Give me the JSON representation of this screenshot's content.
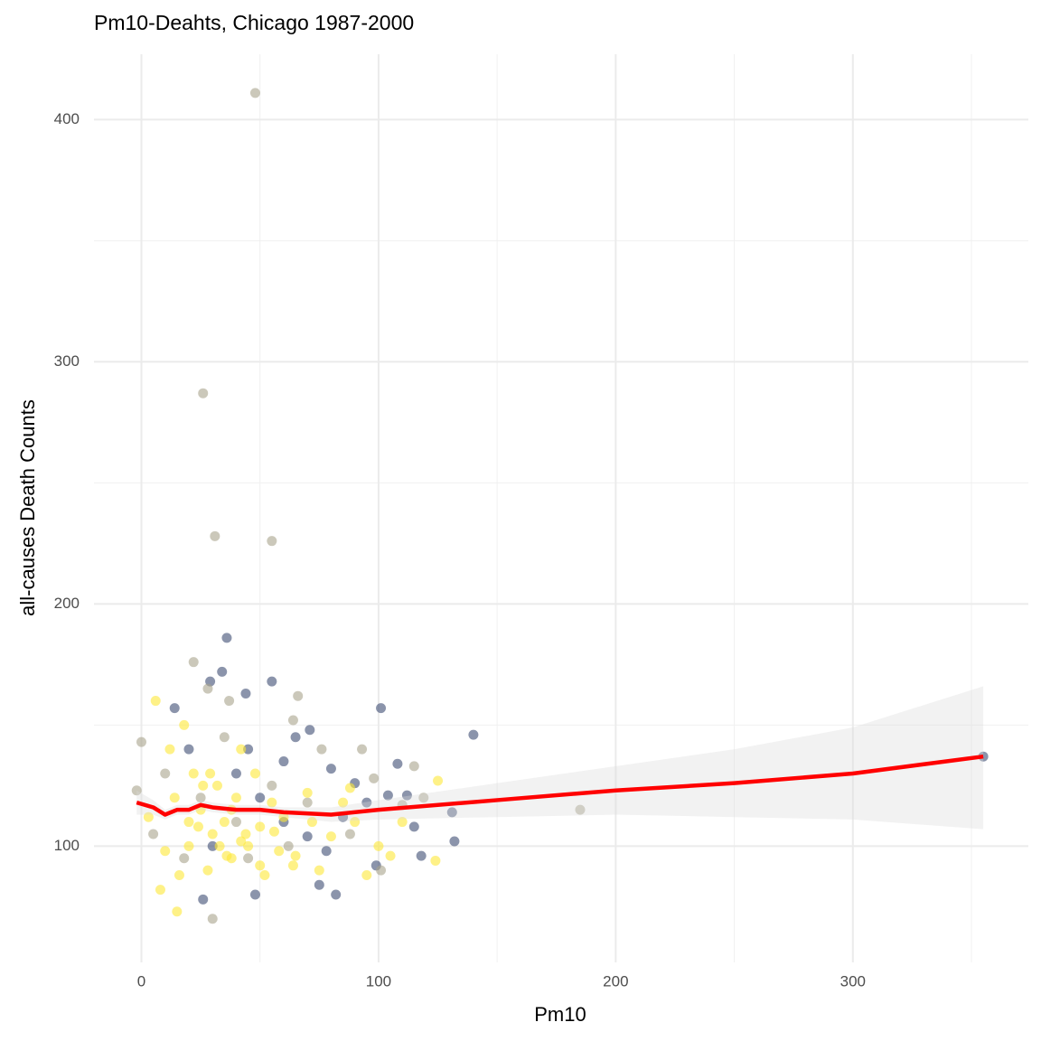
{
  "chart_data": {
    "type": "scatter",
    "title": "Pm10-Deahts, Chicago 1987-2000",
    "x_label": "Pm10",
    "y_label": "all-causes Death Counts",
    "xlim": [
      -20,
      374
    ],
    "ylim": [
      52,
      427
    ],
    "xticks": [
      0,
      100,
      200,
      300
    ],
    "yticks": [
      100,
      200,
      300,
      400
    ],
    "x_minor_ticks": [
      50,
      150,
      250,
      350
    ],
    "y_minor_ticks": [
      150,
      250,
      350
    ],
    "grid": true,
    "point_opacity": 0.6,
    "series": [
      {
        "color": "#3d4d73",
        "x": [
          36,
          55,
          29,
          34,
          44,
          101,
          140,
          71,
          65,
          80,
          90,
          108,
          112,
          131,
          355,
          132,
          115,
          99,
          118,
          82,
          75,
          48,
          26,
          14,
          20,
          40,
          50,
          60,
          70,
          85,
          95,
          45,
          30,
          60,
          104,
          78
        ],
        "values": [
          186,
          168,
          168,
          172,
          163,
          157,
          146,
          148,
          145,
          132,
          126,
          134,
          121,
          114,
          137,
          102,
          108,
          92,
          96,
          80,
          84,
          80,
          78,
          157,
          140,
          130,
          120,
          110,
          104,
          112,
          118,
          140,
          100,
          135,
          121,
          98
        ]
      },
      {
        "color": "#a8a38c",
        "x": [
          48,
          26,
          31,
          55,
          22,
          28,
          66,
          37,
          64,
          110,
          115,
          185,
          119,
          93,
          76,
          30,
          -2,
          0,
          10,
          18,
          40,
          55,
          35,
          70,
          88,
          98,
          25,
          45,
          5,
          62,
          101
        ],
        "values": [
          411,
          287,
          228,
          226,
          176,
          165,
          162,
          160,
          152,
          117,
          133,
          115,
          120,
          140,
          140,
          70,
          123,
          143,
          130,
          95,
          110,
          125,
          145,
          118,
          105,
          128,
          120,
          95,
          105,
          100,
          90
        ]
      },
      {
        "color": "#fde737",
        "x": [
          6,
          8,
          12,
          15,
          18,
          20,
          22,
          25,
          28,
          30,
          32,
          35,
          38,
          40,
          42,
          45,
          48,
          50,
          52,
          55,
          58,
          60,
          65,
          70,
          75,
          80,
          85,
          90,
          95,
          100,
          105,
          110,
          125,
          124,
          14,
          10,
          20,
          26,
          33,
          38,
          44,
          50,
          3,
          16,
          24,
          29,
          36,
          42,
          56,
          64,
          72,
          88
        ],
        "values": [
          160,
          82,
          140,
          73,
          150,
          100,
          130,
          115,
          90,
          105,
          125,
          110,
          95,
          120,
          140,
          100,
          130,
          108,
          88,
          118,
          98,
          112,
          96,
          122,
          90,
          104,
          118,
          110,
          88,
          100,
          96,
          110,
          127,
          94,
          120,
          98,
          110,
          125,
          100,
          115,
          105,
          92,
          112,
          88,
          108,
          130,
          96,
          102,
          106,
          92,
          110,
          124
        ]
      }
    ],
    "smooth": {
      "color": "#ff0000",
      "band_color": "#d9d9d9",
      "x": [
        -2,
        5,
        10,
        15,
        20,
        25,
        30,
        40,
        50,
        60,
        80,
        100,
        150,
        200,
        250,
        300,
        355
      ],
      "values": [
        118,
        116,
        113,
        115,
        115,
        117,
        116,
        115,
        115,
        114,
        113,
        115,
        119,
        123,
        126,
        130,
        137
      ],
      "ci_lower": [
        113,
        113,
        111,
        113,
        113,
        115,
        114,
        113,
        113,
        112,
        110,
        111,
        112,
        113,
        112,
        111,
        107
      ],
      "ci_upper": [
        123,
        119,
        115,
        117,
        117,
        119,
        118,
        117,
        117,
        116,
        116,
        119,
        126,
        133,
        140,
        149,
        166
      ]
    }
  }
}
